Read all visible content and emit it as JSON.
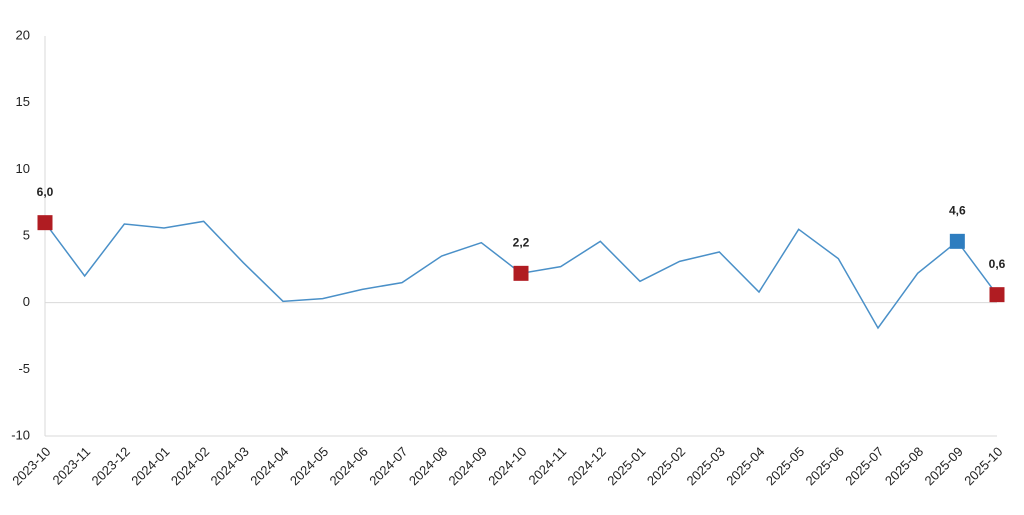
{
  "chart_data": {
    "type": "line",
    "categories": [
      "2023-10",
      "2023-11",
      "2023-12",
      "2024-01",
      "2024-02",
      "2024-03",
      "2024-04",
      "2024-05",
      "2024-06",
      "2024-07",
      "2024-08",
      "2024-09",
      "2024-10",
      "2024-11",
      "2024-12",
      "2025-01",
      "2025-02",
      "2025-03",
      "2025-04",
      "2025-05",
      "2025-06",
      "2025-07",
      "2025-08",
      "2025-09",
      "2025-10"
    ],
    "series": [
      {
        "color": "#4a90c8",
        "values": [
          6.0,
          2.0,
          5.9,
          5.6,
          6.1,
          3.0,
          0.1,
          0.3,
          1.0,
          1.5,
          3.5,
          4.5,
          2.2,
          2.7,
          4.6,
          1.6,
          3.1,
          3.8,
          0.8,
          5.5,
          3.3,
          -1.9,
          2.2,
          4.6,
          0.6
        ],
        "value_labels": [
          "6,0",
          null,
          null,
          null,
          null,
          null,
          null,
          null,
          null,
          null,
          null,
          null,
          "2,2",
          null,
          null,
          null,
          null,
          null,
          null,
          null,
          null,
          null,
          null,
          "4,6",
          "0,6"
        ],
        "marker_colors": [
          "#b01c22",
          null,
          null,
          null,
          null,
          null,
          null,
          null,
          null,
          null,
          null,
          null,
          "#b01c22",
          null,
          null,
          null,
          null,
          null,
          null,
          null,
          null,
          null,
          null,
          "#2e7dbf",
          "#b01c22"
        ]
      }
    ],
    "ylim": [
      -10,
      20
    ],
    "yticks": [
      -10,
      -5,
      0,
      5,
      10,
      15,
      20
    ]
  }
}
